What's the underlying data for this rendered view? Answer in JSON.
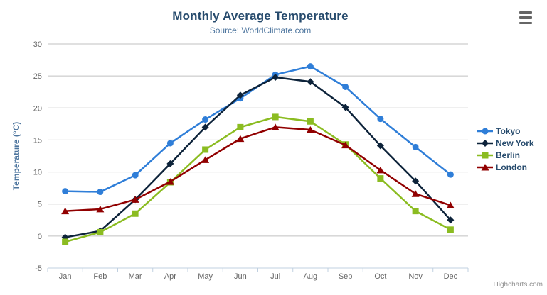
{
  "chart_data": {
    "type": "line",
    "title": "Monthly Average Temperature",
    "subtitle": "Source: WorldClimate.com",
    "categories": [
      "Jan",
      "Feb",
      "Mar",
      "Apr",
      "May",
      "Jun",
      "Jul",
      "Aug",
      "Sep",
      "Oct",
      "Nov",
      "Dec"
    ],
    "series": [
      {
        "name": "Tokyo",
        "color": "#2f7ed8",
        "marker": "circle",
        "values": [
          7.0,
          6.9,
          9.5,
          14.5,
          18.2,
          21.5,
          25.2,
          26.5,
          23.3,
          18.3,
          13.9,
          9.6
        ]
      },
      {
        "name": "New York",
        "color": "#0d233a",
        "marker": "diamond",
        "values": [
          -0.2,
          0.8,
          5.7,
          11.3,
          17.0,
          22.0,
          24.8,
          24.1,
          20.1,
          14.1,
          8.6,
          2.5
        ]
      },
      {
        "name": "Berlin",
        "color": "#8bbc21",
        "marker": "square",
        "values": [
          -0.9,
          0.6,
          3.5,
          8.4,
          13.5,
          17.0,
          18.6,
          17.9,
          14.3,
          9.0,
          3.9,
          1.0
        ]
      },
      {
        "name": "London",
        "color": "#910000",
        "marker": "triangle",
        "values": [
          3.9,
          4.2,
          5.7,
          8.5,
          11.9,
          15.2,
          17.0,
          16.6,
          14.2,
          10.3,
          6.6,
          4.8
        ]
      }
    ],
    "xlabel": "",
    "ylabel": "Temperature (°C)",
    "ylim": [
      -5,
      30
    ],
    "ytick_step": 5,
    "grid": true,
    "legend_position": "right"
  },
  "credits": {
    "label": "Highcharts.com"
  },
  "colors": {
    "background": "#ffffff",
    "title": "#274b6d",
    "subtitle": "#4d759e",
    "gridline": "#c0c0c0",
    "axis_line": "#c0d0e0",
    "tick": "#c0d0e0",
    "axis_label": "#666666",
    "axis_title": "#4d759e",
    "legend_text": "#274b6d",
    "credits": "#909090",
    "menu_icon": "#666666"
  }
}
